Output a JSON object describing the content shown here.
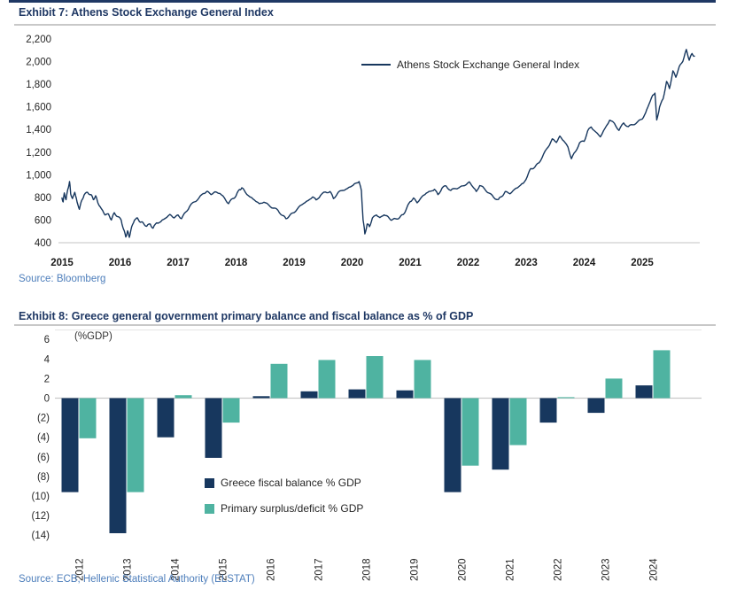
{
  "exhibit7": {
    "title": "Exhibit 7: Athens Stock Exchange General Index",
    "source": "Source: Bloomberg"
  },
  "exhibit8": {
    "title": "Exhibit 8: Greece general government primary balance and fiscal balance as % of GDP",
    "source": "Source: ECB, Hellenic Statistical Authority (ELSTAT)"
  },
  "colors": {
    "navy": "#17375E",
    "teal": "#4FB3A1",
    "title_navy": "#1F3864",
    "source_blue": "#4D7EBB",
    "axis_line": "#CFCFCF",
    "tick_text": "#262626"
  },
  "chart_data": [
    {
      "type": "line",
      "title": "Athens Stock Exchange General Index",
      "xlabel": "",
      "ylabel": "",
      "xlim": [
        2015,
        2026
      ],
      "ylim": [
        400,
        2200
      ],
      "grid": false,
      "legend_position": "top-center",
      "x_ticks": [
        "2015",
        "2016",
        "2017",
        "2018",
        "2019",
        "2020",
        "2021",
        "2022",
        "2023",
        "2024",
        "2025"
      ],
      "y_tick_labels": [
        "2,200",
        "2,000",
        "1,800",
        "1,600",
        "1,400",
        "1,200",
        "1,000",
        "800",
        "600",
        "400"
      ],
      "y_tick_values": [
        2200,
        2000,
        1800,
        1600,
        1400,
        1200,
        1000,
        800,
        600,
        400
      ],
      "series": [
        {
          "name": "Athens Stock Exchange General Index",
          "color": "#17375E",
          "points": [
            [
              2015.0,
              795
            ],
            [
              2015.02,
              760
            ],
            [
              2015.04,
              840
            ],
            [
              2015.07,
              780
            ],
            [
              2015.1,
              870
            ],
            [
              2015.13,
              940
            ],
            [
              2015.15,
              830
            ],
            [
              2015.18,
              790
            ],
            [
              2015.22,
              845
            ],
            [
              2015.26,
              760
            ],
            [
              2015.3,
              695
            ],
            [
              2015.34,
              775
            ],
            [
              2015.38,
              820
            ],
            [
              2015.44,
              845
            ],
            [
              2015.5,
              825
            ],
            [
              2015.54,
              780
            ],
            [
              2015.58,
              815
            ],
            [
              2015.62,
              750
            ],
            [
              2015.68,
              700
            ],
            [
              2015.74,
              645
            ],
            [
              2015.8,
              655
            ],
            [
              2015.85,
              600
            ],
            [
              2015.9,
              665
            ],
            [
              2015.96,
              630
            ],
            [
              2016.02,
              600
            ],
            [
              2016.06,
              520
            ],
            [
              2016.1,
              450
            ],
            [
              2016.13,
              505
            ],
            [
              2016.16,
              448
            ],
            [
              2016.2,
              540
            ],
            [
              2016.25,
              600
            ],
            [
              2016.3,
              620
            ],
            [
              2016.35,
              580
            ],
            [
              2016.4,
              575
            ],
            [
              2016.46,
              545
            ],
            [
              2016.52,
              565
            ],
            [
              2016.57,
              528
            ],
            [
              2016.63,
              575
            ],
            [
              2016.7,
              585
            ],
            [
              2016.78,
              615
            ],
            [
              2016.86,
              650
            ],
            [
              2016.93,
              618
            ],
            [
              2017.0,
              645
            ],
            [
              2017.06,
              612
            ],
            [
              2017.13,
              670
            ],
            [
              2017.2,
              720
            ],
            [
              2017.28,
              760
            ],
            [
              2017.36,
              795
            ],
            [
              2017.44,
              835
            ],
            [
              2017.5,
              855
            ],
            [
              2017.57,
              825
            ],
            [
              2017.64,
              850
            ],
            [
              2017.72,
              835
            ],
            [
              2017.8,
              795
            ],
            [
              2017.87,
              745
            ],
            [
              2017.94,
              790
            ],
            [
              2018.0,
              815
            ],
            [
              2018.06,
              870
            ],
            [
              2018.1,
              885
            ],
            [
              2018.16,
              845
            ],
            [
              2018.24,
              805
            ],
            [
              2018.32,
              775
            ],
            [
              2018.4,
              745
            ],
            [
              2018.48,
              758
            ],
            [
              2018.56,
              735
            ],
            [
              2018.64,
              705
            ],
            [
              2018.72,
              688
            ],
            [
              2018.8,
              640
            ],
            [
              2018.86,
              612
            ],
            [
              2018.93,
              645
            ],
            [
              2019.0,
              665
            ],
            [
              2019.08,
              715
            ],
            [
              2019.16,
              745
            ],
            [
              2019.24,
              772
            ],
            [
              2019.32,
              805
            ],
            [
              2019.38,
              778
            ],
            [
              2019.46,
              820
            ],
            [
              2019.54,
              848
            ],
            [
              2019.62,
              852
            ],
            [
              2019.68,
              790
            ],
            [
              2019.76,
              845
            ],
            [
              2019.84,
              862
            ],
            [
              2019.92,
              880
            ],
            [
              2020.0,
              902
            ],
            [
              2020.06,
              925
            ],
            [
              2020.12,
              940
            ],
            [
              2020.16,
              860
            ],
            [
              2020.19,
              600
            ],
            [
              2020.22,
              478
            ],
            [
              2020.26,
              565
            ],
            [
              2020.3,
              542
            ],
            [
              2020.35,
              618
            ],
            [
              2020.42,
              645
            ],
            [
              2020.48,
              622
            ],
            [
              2020.55,
              645
            ],
            [
              2020.62,
              630
            ],
            [
              2020.68,
              598
            ],
            [
              2020.75,
              612
            ],
            [
              2020.82,
              622
            ],
            [
              2020.88,
              648
            ],
            [
              2020.94,
              705
            ],
            [
              2021.0,
              762
            ],
            [
              2021.06,
              795
            ],
            [
              2021.12,
              752
            ],
            [
              2021.2,
              805
            ],
            [
              2021.28,
              838
            ],
            [
              2021.35,
              855
            ],
            [
              2021.42,
              872
            ],
            [
              2021.48,
              825
            ],
            [
              2021.55,
              882
            ],
            [
              2021.62,
              902
            ],
            [
              2021.7,
              862
            ],
            [
              2021.78,
              878
            ],
            [
              2021.86,
              892
            ],
            [
              2021.94,
              905
            ],
            [
              2022.02,
              938
            ],
            [
              2022.08,
              895
            ],
            [
              2022.14,
              852
            ],
            [
              2022.2,
              905
            ],
            [
              2022.28,
              878
            ],
            [
              2022.36,
              838
            ],
            [
              2022.44,
              800
            ],
            [
              2022.52,
              782
            ],
            [
              2022.58,
              808
            ],
            [
              2022.64,
              852
            ],
            [
              2022.72,
              832
            ],
            [
              2022.8,
              872
            ],
            [
              2022.88,
              898
            ],
            [
              2022.95,
              925
            ],
            [
              2023.02,
              985
            ],
            [
              2023.08,
              1055
            ],
            [
              2023.15,
              1068
            ],
            [
              2023.22,
              1105
            ],
            [
              2023.3,
              1182
            ],
            [
              2023.38,
              1245
            ],
            [
              2023.45,
              1318
            ],
            [
              2023.52,
              1285
            ],
            [
              2023.58,
              1342
            ],
            [
              2023.65,
              1298
            ],
            [
              2023.72,
              1245
            ],
            [
              2023.78,
              1142
            ],
            [
              2023.85,
              1205
            ],
            [
              2023.92,
              1282
            ],
            [
              2024.0,
              1295
            ],
            [
              2024.06,
              1388
            ],
            [
              2024.12,
              1422
            ],
            [
              2024.2,
              1378
            ],
            [
              2024.28,
              1335
            ],
            [
              2024.36,
              1412
            ],
            [
              2024.44,
              1482
            ],
            [
              2024.52,
              1455
            ],
            [
              2024.6,
              1392
            ],
            [
              2024.68,
              1458
            ],
            [
              2024.76,
              1425
            ],
            [
              2024.84,
              1442
            ],
            [
              2024.92,
              1468
            ],
            [
              2025.0,
              1492
            ],
            [
              2025.06,
              1548
            ],
            [
              2025.12,
              1628
            ],
            [
              2025.18,
              1702
            ],
            [
              2025.22,
              1722
            ],
            [
              2025.25,
              1485
            ],
            [
              2025.3,
              1598
            ],
            [
              2025.36,
              1672
            ],
            [
              2025.42,
              1825
            ],
            [
              2025.47,
              1762
            ],
            [
              2025.53,
              1918
            ],
            [
              2025.58,
              1862
            ],
            [
              2025.64,
              1958
            ],
            [
              2025.7,
              2002
            ],
            [
              2025.76,
              2108
            ],
            [
              2025.81,
              2012
            ],
            [
              2025.86,
              2072
            ],
            [
              2025.9,
              2048
            ]
          ]
        }
      ]
    },
    {
      "type": "bar",
      "title": "Greece general government primary balance and fiscal balance as % of GDP",
      "unit_label": "(%GDP)",
      "xlabel": "",
      "ylabel": "",
      "ylim": [
        -14.8,
        6.9
      ],
      "grid": false,
      "legend_position": "inside-bottom-center",
      "categories": [
        "2012",
        "2013",
        "2014",
        "2015",
        "2016",
        "2017",
        "2018",
        "2019",
        "2020",
        "2021",
        "2022",
        "2023",
        "2024"
      ],
      "y_tick_labels": [
        "6",
        "4",
        "2",
        "0",
        "(2)",
        "(4)",
        "(6)",
        "(8)",
        "(10)",
        "(12)",
        "(14)"
      ],
      "y_tick_values": [
        6,
        4,
        2,
        0,
        -2,
        -4,
        -6,
        -8,
        -10,
        -12,
        -14
      ],
      "series": [
        {
          "name": "Greece fiscal balance % GDP",
          "color": "#17375E",
          "values": [
            -9.6,
            -13.8,
            -4.0,
            -6.1,
            0.2,
            0.7,
            0.9,
            0.8,
            -9.6,
            -7.3,
            -2.5,
            -1.5,
            1.3
          ]
        },
        {
          "name": "Primary surplus/deficit % GDP",
          "color": "#4FB3A1",
          "values": [
            -4.1,
            -9.6,
            0.3,
            -2.5,
            3.5,
            3.9,
            4.3,
            3.9,
            -6.9,
            -4.8,
            0.1,
            2.0,
            4.9
          ]
        }
      ]
    }
  ]
}
